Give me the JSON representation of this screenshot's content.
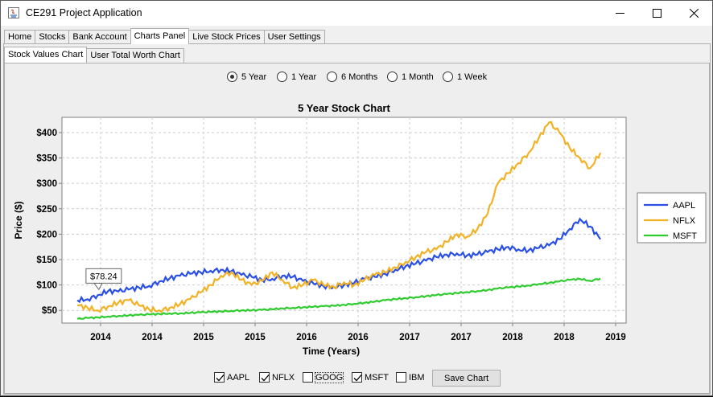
{
  "window": {
    "title": "CE291 Project Application"
  },
  "main_tabs": [
    "Home",
    "Stocks",
    "Bank Account",
    "Charts Panel",
    "Live Stock Prices",
    "User Settings"
  ],
  "main_tab_active": "Charts Panel",
  "sub_tabs": [
    "Stock Values Chart",
    "User Total Worth Chart"
  ],
  "sub_tab_active": "Stock Values Chart",
  "range_options": [
    {
      "label": "5 Year",
      "selected": true
    },
    {
      "label": "1 Year",
      "selected": false
    },
    {
      "label": "6 Months",
      "selected": false
    },
    {
      "label": "1 Month",
      "selected": false
    },
    {
      "label": "1 Week",
      "selected": false
    }
  ],
  "stock_toggles": [
    {
      "label": "AAPL",
      "checked": true
    },
    {
      "label": "NFLX",
      "checked": true
    },
    {
      "label": "GOOG",
      "checked": false
    },
    {
      "label": "MSFT",
      "checked": true
    },
    {
      "label": "IBM",
      "checked": false
    }
  ],
  "save_button": "Save Chart",
  "chart_data": {
    "type": "line",
    "title": "5 Year Stock Chart",
    "xlabel": "Time (Years)",
    "ylabel": "Price ($)",
    "x_tick_labels": [
      "2014",
      "2014",
      "2015",
      "2015",
      "2016",
      "2016",
      "2017",
      "2017",
      "2018",
      "2018",
      "2019"
    ],
    "y_tick_labels": [
      "$50",
      "$100",
      "$150",
      "$200",
      "$250",
      "$300",
      "$350",
      "$400"
    ],
    "y_ticks": [
      50,
      100,
      150,
      200,
      250,
      300,
      350,
      400
    ],
    "ylim": [
      25,
      430
    ],
    "xlim": [
      2013.45,
      2018.95
    ],
    "grid": true,
    "legend_position": "right",
    "tooltip": "$78.24",
    "tooltip_x": 2013.7,
    "tooltip_y": 78.24,
    "series": [
      {
        "name": "AAPL",
        "color": "#2a4fe6",
        "x": [
          2013.6,
          2013.7,
          2013.8,
          2013.9,
          2014.0,
          2014.1,
          2014.2,
          2014.3,
          2014.4,
          2014.5,
          2014.6,
          2014.7,
          2014.8,
          2014.9,
          2015.0,
          2015.1,
          2015.2,
          2015.3,
          2015.4,
          2015.5,
          2015.6,
          2015.7,
          2015.8,
          2015.9,
          2016.0,
          2016.1,
          2016.2,
          2016.3,
          2016.4,
          2016.5,
          2016.6,
          2016.7,
          2016.8,
          2016.9,
          2017.0,
          2017.1,
          2017.2,
          2017.3,
          2017.4,
          2017.5,
          2017.6,
          2017.7,
          2017.8,
          2017.9,
          2018.0,
          2018.1,
          2018.2,
          2018.3,
          2018.4,
          2018.5,
          2018.6,
          2018.7
        ],
        "values": [
          70,
          72,
          80,
          88,
          87,
          91,
          95,
          98,
          107,
          113,
          118,
          122,
          125,
          128,
          130,
          127,
          120,
          116,
          110,
          112,
          118,
          116,
          108,
          103,
          98,
          96,
          100,
          104,
          112,
          116,
          122,
          130,
          137,
          142,
          148,
          155,
          160,
          162,
          158,
          160,
          165,
          170,
          175,
          170,
          168,
          173,
          178,
          190,
          210,
          230,
          215,
          190
        ]
      },
      {
        "name": "NFLX",
        "color": "#f2b226",
        "x": [
          2013.6,
          2013.7,
          2013.8,
          2013.9,
          2014.0,
          2014.1,
          2014.2,
          2014.3,
          2014.4,
          2014.5,
          2014.6,
          2014.7,
          2014.8,
          2014.9,
          2015.0,
          2015.1,
          2015.2,
          2015.3,
          2015.4,
          2015.5,
          2015.6,
          2015.7,
          2015.8,
          2015.9,
          2016.0,
          2016.1,
          2016.2,
          2016.3,
          2016.4,
          2016.5,
          2016.6,
          2016.7,
          2016.8,
          2016.9,
          2017.0,
          2017.1,
          2017.2,
          2017.3,
          2017.4,
          2017.5,
          2017.6,
          2017.7,
          2017.8,
          2017.9,
          2018.0,
          2018.1,
          2018.2,
          2018.3,
          2018.4,
          2018.5,
          2018.6,
          2018.7
        ],
        "values": [
          60,
          55,
          50,
          58,
          65,
          70,
          60,
          52,
          50,
          55,
          62,
          72,
          85,
          100,
          118,
          125,
          110,
          100,
          108,
          125,
          110,
          95,
          100,
          110,
          100,
          96,
          105,
          100,
          110,
          120,
          125,
          135,
          145,
          155,
          165,
          170,
          185,
          200,
          195,
          210,
          240,
          300,
          320,
          340,
          360,
          390,
          420,
          400,
          370,
          350,
          330,
          360
        ]
      },
      {
        "name": "MSFT",
        "color": "#2ecc2e",
        "x": [
          2013.6,
          2013.7,
          2013.8,
          2013.9,
          2014.0,
          2014.1,
          2014.2,
          2014.3,
          2014.4,
          2014.5,
          2014.6,
          2014.7,
          2014.8,
          2014.9,
          2015.0,
          2015.1,
          2015.2,
          2015.3,
          2015.4,
          2015.5,
          2015.6,
          2015.7,
          2015.8,
          2015.9,
          2016.0,
          2016.1,
          2016.2,
          2016.3,
          2016.4,
          2016.5,
          2016.6,
          2016.7,
          2016.8,
          2016.9,
          2017.0,
          2017.1,
          2017.2,
          2017.3,
          2017.4,
          2017.5,
          2017.6,
          2017.7,
          2017.8,
          2017.9,
          2018.0,
          2018.1,
          2018.2,
          2018.3,
          2018.4,
          2018.5,
          2018.6,
          2018.7
        ],
        "values": [
          33,
          35,
          36,
          38,
          39,
          40,
          41,
          42,
          43,
          44,
          44,
          45,
          46,
          47,
          48,
          49,
          50,
          50,
          51,
          52,
          54,
          55,
          56,
          57,
          58,
          59,
          61,
          63,
          65,
          67,
          70,
          72,
          74,
          76,
          78,
          80,
          82,
          84,
          86,
          88,
          90,
          93,
          95,
          97,
          99,
          102,
          104,
          107,
          110,
          112,
          108,
          113
        ]
      }
    ]
  }
}
